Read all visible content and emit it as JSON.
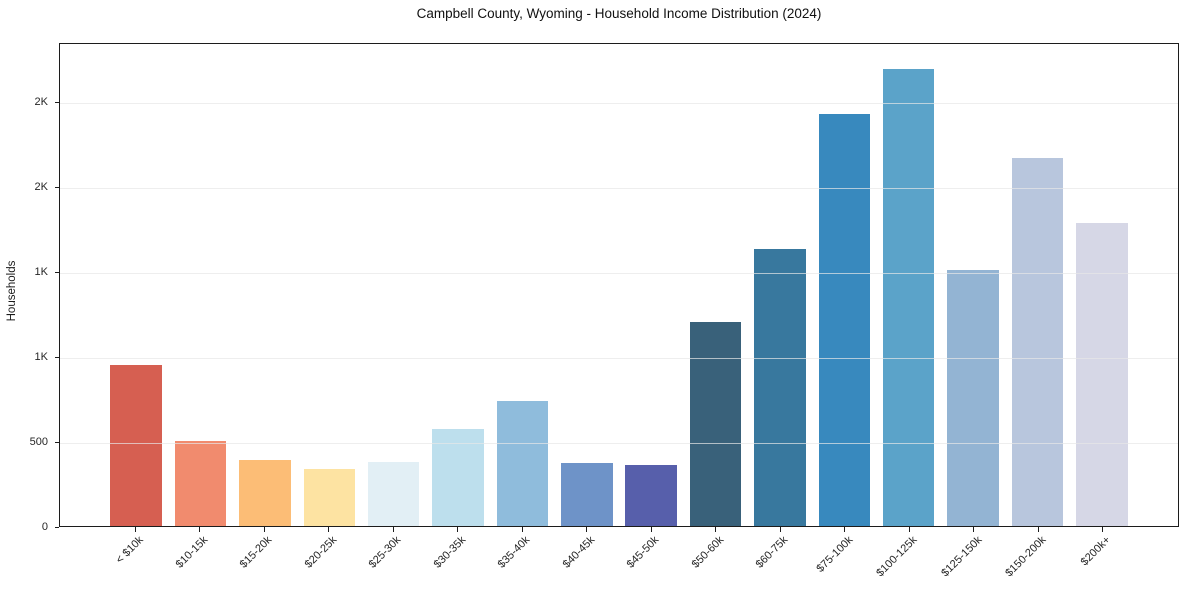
{
  "title": "Campbell County, Wyoming - Household Income Distribution (2024)",
  "chart_data": {
    "type": "bar",
    "title": "Campbell County, Wyoming - Household Income Distribution (2024)",
    "xlabel": "",
    "ylabel": "Households",
    "legend": "none",
    "grid": "horizontal",
    "ylim": [
      0,
      2850
    ],
    "categories": [
      "< $10k",
      "$10-15k",
      "$15-20k",
      "$20-25k",
      "$25-30k",
      "$30-35k",
      "$35-40k",
      "$40-45k",
      "$45-50k",
      "$50-60k",
      "$60-75k",
      "$75-100k",
      "$100-125k",
      "$125-150k",
      "$150-200k",
      "$200k+"
    ],
    "values": [
      955,
      505,
      390,
      340,
      380,
      575,
      740,
      375,
      360,
      1205,
      1635,
      2435,
      2700,
      1515,
      2175,
      1790
    ],
    "bar_colors": [
      "#d65f51",
      "#f18b6e",
      "#fcbd76",
      "#fde3a2",
      "#e2eff5",
      "#bddfed",
      "#8fbcdc",
      "#6e93c8",
      "#575fab",
      "#39617a",
      "#38789e",
      "#3889be",
      "#5ba3c9",
      "#93b4d3",
      "#b8c6dd",
      "#d6d7e6"
    ],
    "yticks": [
      {
        "value": 0,
        "label": "0"
      },
      {
        "value": 500,
        "label": "500"
      },
      {
        "value": 1000,
        "label": "1K"
      },
      {
        "value": 1500,
        "label": "1K"
      },
      {
        "value": 2000,
        "label": "2K"
      },
      {
        "value": 2500,
        "label": "2K"
      }
    ]
  },
  "colors": {
    "spine": "#1c1c1c",
    "grid": "#ececec",
    "grid_over_bars": "rgba(231,231,231,0.7)",
    "background": "#ffffff",
    "tick_text": "#262626",
    "title_text": "#111111"
  }
}
